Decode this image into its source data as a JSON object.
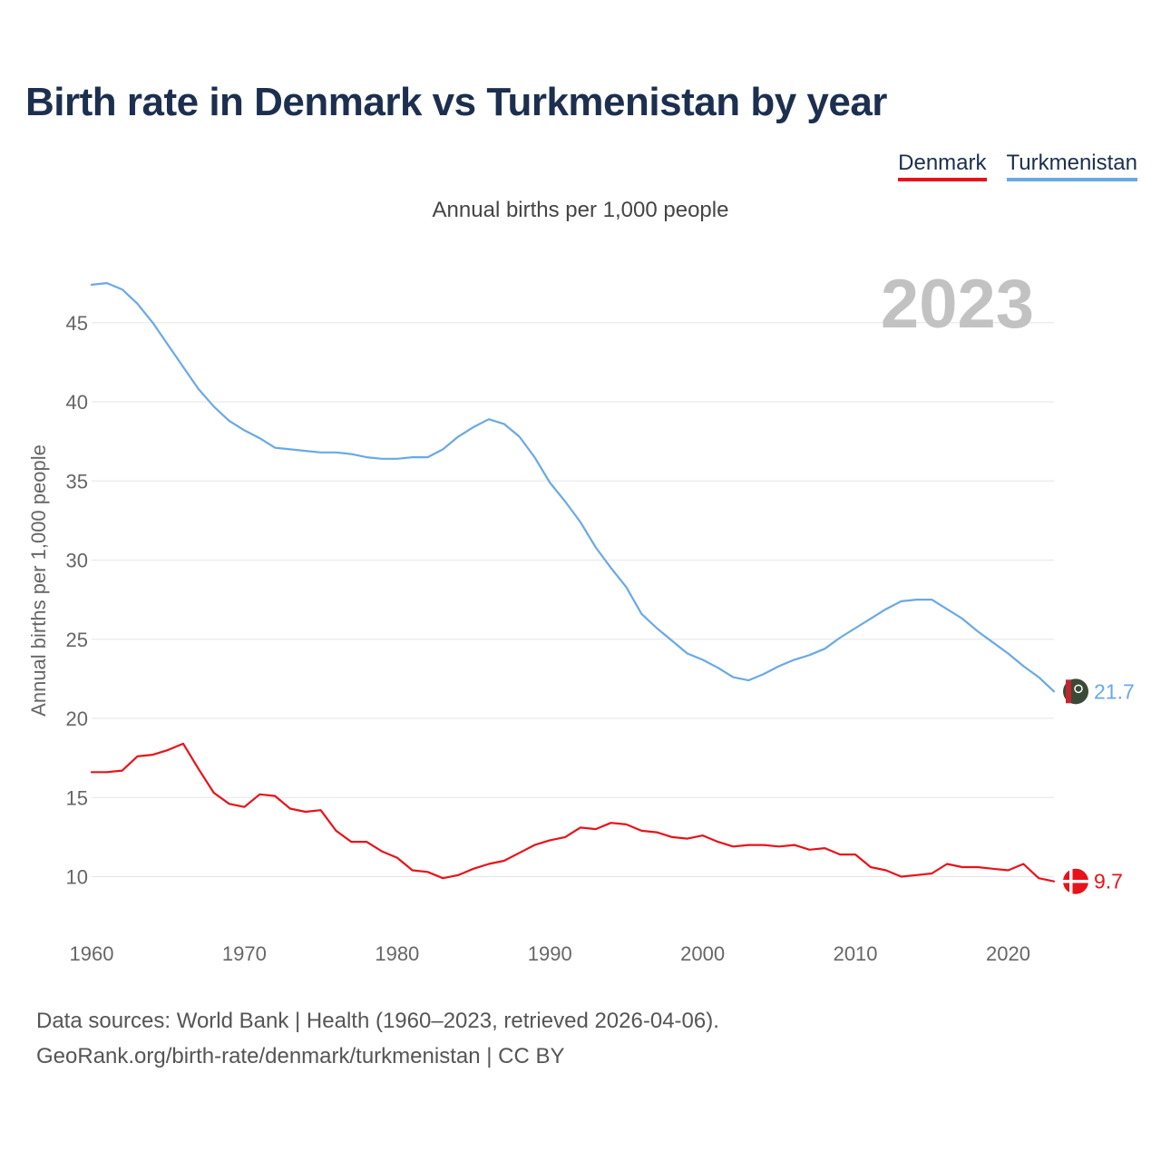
{
  "chart_data": {
    "type": "line",
    "title": "Birth rate in Denmark vs Turkmenistan by year",
    "subtitle": "Annual births per 1,000 people",
    "ylabel": "Annual births per 1,000 people",
    "xlabel": "",
    "year_label": "2023",
    "xlim": [
      1960,
      2023
    ],
    "ylim": [
      7.5,
      48
    ],
    "x_ticks": [
      1960,
      1970,
      1980,
      1990,
      2000,
      2010,
      2020
    ],
    "y_ticks": [
      10,
      15,
      20,
      25,
      30,
      35,
      40,
      45
    ],
    "grid": true,
    "legend_position": "top-right",
    "x": [
      1960,
      1961,
      1962,
      1963,
      1964,
      1965,
      1966,
      1967,
      1968,
      1969,
      1970,
      1971,
      1972,
      1973,
      1974,
      1975,
      1976,
      1977,
      1978,
      1979,
      1980,
      1981,
      1982,
      1983,
      1984,
      1985,
      1986,
      1987,
      1988,
      1989,
      1990,
      1991,
      1992,
      1993,
      1994,
      1995,
      1996,
      1997,
      1998,
      1999,
      2000,
      2001,
      2002,
      2003,
      2004,
      2005,
      2006,
      2007,
      2008,
      2009,
      2010,
      2011,
      2012,
      2013,
      2014,
      2015,
      2016,
      2017,
      2018,
      2019,
      2020,
      2021,
      2022,
      2023
    ],
    "series": [
      {
        "name": "Denmark",
        "color": "#e8121a",
        "end_label": "9.7",
        "values": [
          16.6,
          16.6,
          16.7,
          17.6,
          17.7,
          18.0,
          18.4,
          16.8,
          15.3,
          14.6,
          14.4,
          15.2,
          15.1,
          14.3,
          14.1,
          14.2,
          12.9,
          12.2,
          12.2,
          11.6,
          11.2,
          10.4,
          10.3,
          9.9,
          10.1,
          10.5,
          10.8,
          11.0,
          11.5,
          12.0,
          12.3,
          12.5,
          13.1,
          13.0,
          13.4,
          13.3,
          12.9,
          12.8,
          12.5,
          12.4,
          12.6,
          12.2,
          11.9,
          12.0,
          12.0,
          11.9,
          12.0,
          11.7,
          11.8,
          11.4,
          11.4,
          10.6,
          10.4,
          10.0,
          10.1,
          10.2,
          10.8,
          10.6,
          10.6,
          10.5,
          10.4,
          10.8,
          9.9,
          9.7
        ]
      },
      {
        "name": "Turkmenistan",
        "color": "#6aa9e4",
        "end_label": "21.7",
        "values": [
          47.4,
          47.5,
          47.1,
          46.2,
          45.0,
          43.6,
          42.2,
          40.8,
          39.7,
          38.8,
          38.2,
          37.7,
          37.1,
          37.0,
          36.9,
          36.8,
          36.8,
          36.7,
          36.5,
          36.4,
          36.4,
          36.5,
          36.5,
          37.0,
          37.8,
          38.4,
          38.9,
          38.6,
          37.8,
          36.5,
          34.9,
          33.7,
          32.4,
          30.8,
          29.5,
          28.3,
          26.6,
          25.7,
          24.9,
          24.1,
          23.7,
          23.2,
          22.6,
          22.4,
          22.8,
          23.3,
          23.7,
          24.0,
          24.4,
          25.1,
          25.7,
          26.3,
          26.9,
          27.4,
          27.5,
          27.5,
          26.9,
          26.3,
          25.5,
          24.8,
          24.1,
          23.3,
          22.6,
          21.7
        ]
      }
    ]
  },
  "footer": {
    "line1": "Data sources: World Bank | Health (1960–2023, retrieved 2026-04-06).",
    "line2": "GeoRank.org/birth-rate/denmark/turkmenistan | CC BY"
  }
}
